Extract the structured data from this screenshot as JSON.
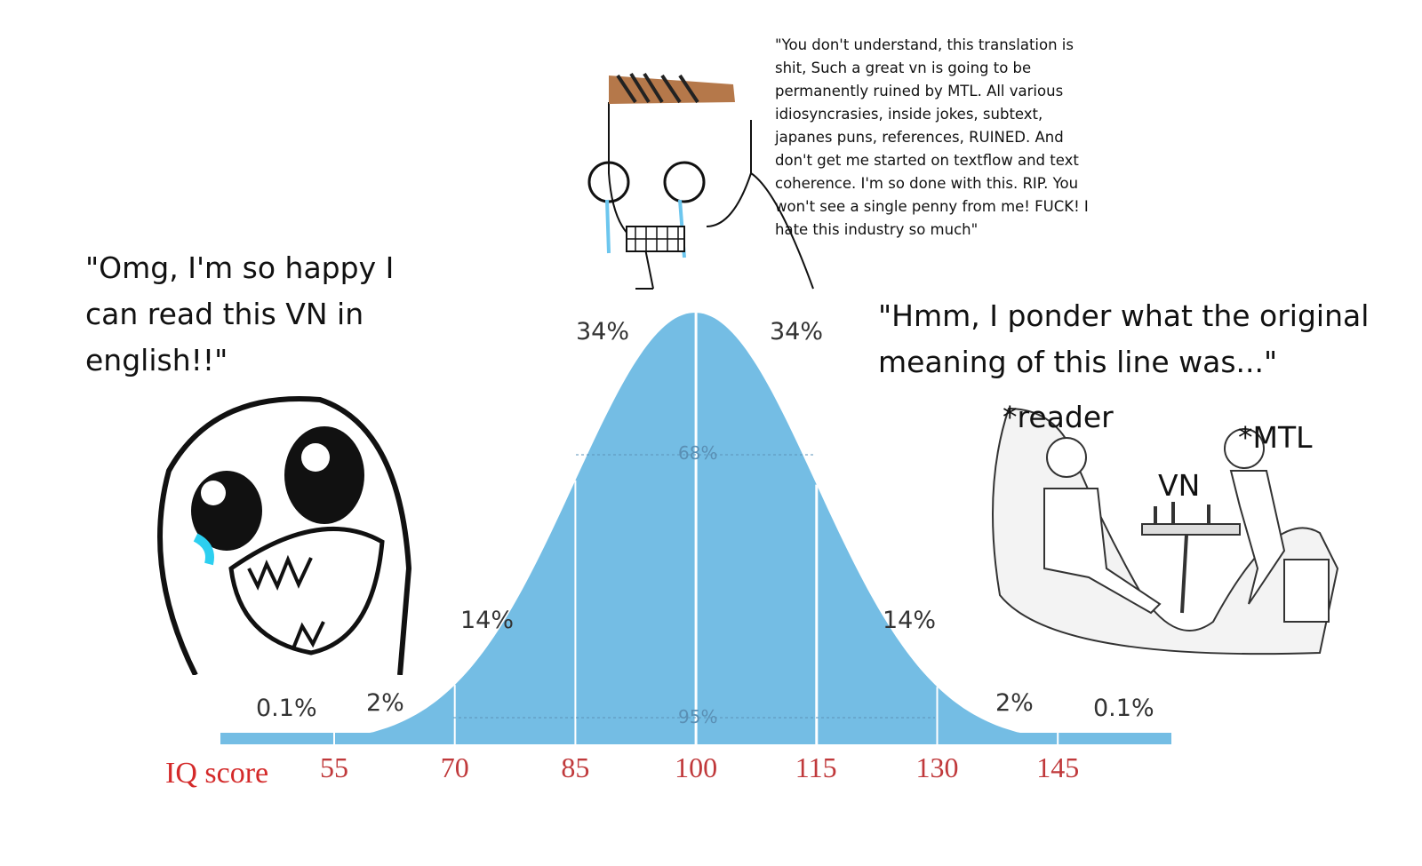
{
  "top_quote": "\"You don't understand, this translation is shit, Such a great vn is going to be permanently ruined by MTL. All various idiosyncrasies, inside jokes, subtext, japanes puns, references, RUINED. And don't get me started on textflow and text coherence. I'm so done with this. RIP. You won't see a single penny from me! FUCK! I hate this industry so much\"",
  "left_quote": "\"Omg, I'm so happy I can read this VN in english!!\"",
  "right_quote": "\"Hmm, I ponder what the original meaning of this line was...\"",
  "chess_labels": {
    "reader": "*reader",
    "vn": "VN",
    "mtl": "*MTL"
  },
  "curve": {
    "axis_title": "IQ score",
    "ticks": [
      "55",
      "70",
      "85",
      "100",
      "115",
      "130",
      "145"
    ],
    "region_labels": [
      "0.1%",
      "2%",
      "14%",
      "34%",
      "34%",
      "14%",
      "2%",
      "0.1%"
    ],
    "inner_labels": {
      "one_sd": "68%",
      "two_sd": "95%"
    },
    "fill_color": "#74bde4",
    "tick_color": "#c0393b"
  }
}
